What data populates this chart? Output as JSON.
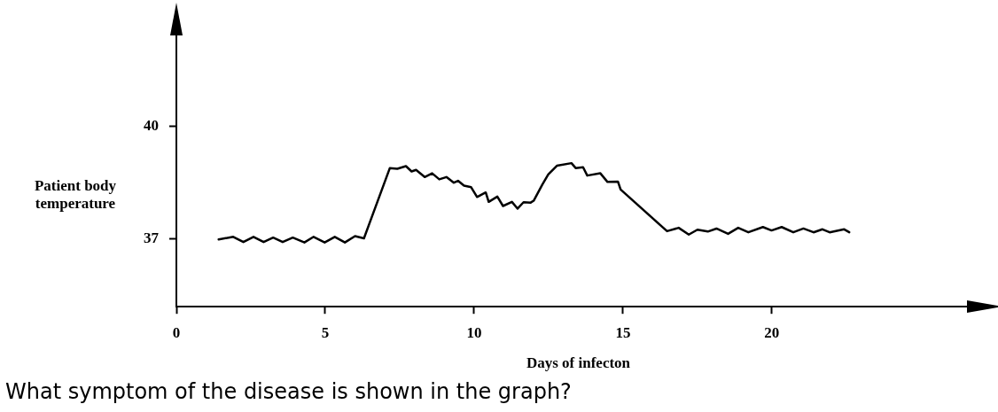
{
  "chart_data": {
    "type": "line",
    "xlabel": "Days of infecton",
    "ylabel": "Patient body temperature",
    "annotations": [
      "What symptom of the disease is shown in the graph?"
    ],
    "x": [
      1.42,
      1.91,
      2.25,
      2.59,
      2.93,
      3.25,
      3.57,
      3.91,
      4.3,
      4.61,
      4.98,
      5.32,
      5.66,
      6.0,
      6.3,
      7.17,
      7.42,
      7.71,
      7.9,
      8.05,
      8.34,
      8.59,
      8.83,
      9.07,
      9.32,
      9.46,
      9.66,
      9.9,
      10.1,
      10.39,
      10.49,
      10.78,
      10.97,
      11.27,
      11.46,
      11.66,
      11.9,
      12.0,
      12.29,
      12.49,
      12.78,
      13.27,
      13.41,
      13.66,
      13.8,
      14.24,
      14.48,
      14.83,
      14.92,
      16.48,
      16.87,
      17.21,
      17.5,
      17.85,
      18.14,
      18.53,
      18.87,
      19.21,
      19.7,
      19.99,
      20.33,
      20.72,
      21.06,
      21.4,
      21.7,
      21.94,
      22.43,
      22.6
    ],
    "series": [
      {
        "color": "#000000",
        "values": [
          36.99,
          37.06,
          36.92,
          37.06,
          36.92,
          37.04,
          36.92,
          37.04,
          36.91,
          37.06,
          36.91,
          37.06,
          36.91,
          37.08,
          37.02,
          38.89,
          38.87,
          38.94,
          38.8,
          38.84,
          38.65,
          38.75,
          38.59,
          38.65,
          38.5,
          38.55,
          38.42,
          38.38,
          38.12,
          38.24,
          37.99,
          38.13,
          37.88,
          37.99,
          37.81,
          37.98,
          37.97,
          38.02,
          38.45,
          38.72,
          38.95,
          39.02,
          38.89,
          38.91,
          38.69,
          38.75,
          38.52,
          38.53,
          38.32,
          37.21,
          37.3,
          37.12,
          37.25,
          37.2,
          37.28,
          37.14,
          37.3,
          37.18,
          37.32,
          37.23,
          37.32,
          37.18,
          37.28,
          37.18,
          37.26,
          37.18,
          37.26,
          37.18
        ]
      }
    ],
    "xlim": [
      0,
      27
    ],
    "xticks": [
      0,
      5,
      10,
      15,
      20
    ],
    "ylim": [
      35.2,
      42.7
    ],
    "yticks": [
      37,
      40
    ],
    "marker": "none",
    "line_style": "solid"
  }
}
